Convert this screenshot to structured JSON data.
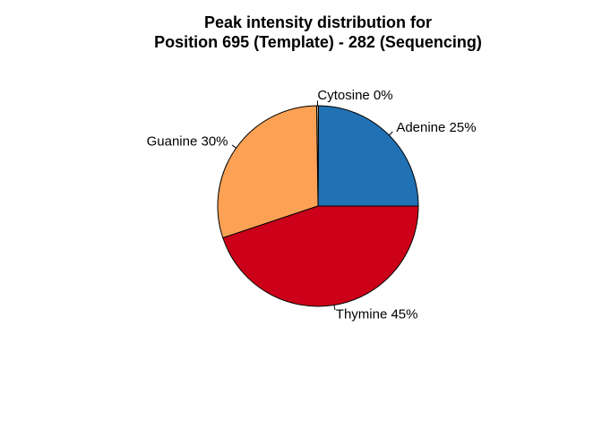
{
  "chart_data": {
    "type": "pie",
    "title": [
      "Peak intensity distribution for",
      "Position 695 (Template) - 282 (Sequencing)"
    ],
    "start_angle_deg": 0,
    "direction": "counterclockwise",
    "border_color": "#000000",
    "slices": [
      {
        "name": "Adenine",
        "value": 25,
        "label": "Adenine 25%",
        "color": "#2171b5"
      },
      {
        "name": "Cytosine",
        "value": 0.3,
        "label": "Cytosine 0%",
        "color": "#b8a98a"
      },
      {
        "name": "Guanine",
        "value": 30,
        "label": "Guanine 30%",
        "color": "#fda155"
      },
      {
        "name": "Thymine",
        "value": 45,
        "label": "Thymine 45%",
        "color": "#cc0019"
      }
    ]
  }
}
